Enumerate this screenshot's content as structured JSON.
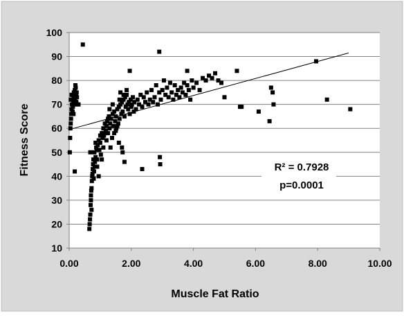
{
  "chart_data": {
    "type": "scatter",
    "xlabel": "Muscle Fat Ratio",
    "ylabel": "Fitness Score",
    "xlim": [
      0,
      10
    ],
    "ylim": [
      10,
      100
    ],
    "x_ticks": [
      "0.00",
      "2.00",
      "4.00",
      "6.00",
      "8.00",
      "10.00"
    ],
    "x_tick_values": [
      0,
      2,
      4,
      6,
      8,
      10
    ],
    "y_ticks": [
      "10",
      "20",
      "30",
      "40",
      "50",
      "60",
      "70",
      "80",
      "90",
      "100"
    ],
    "y_tick_values": [
      10,
      20,
      30,
      40,
      50,
      60,
      70,
      80,
      90,
      100
    ],
    "grid": "horizontal",
    "trendline": {
      "x": [
        0.0,
        9.0
      ],
      "y": [
        59.5,
        91.5
      ]
    },
    "annotations": [
      "R² = 0.7928",
      "p=0.0001"
    ],
    "points": [
      [
        0.02,
        50
      ],
      [
        0.03,
        56
      ],
      [
        0.04,
        60
      ],
      [
        0.05,
        62
      ],
      [
        0.06,
        64
      ],
      [
        0.07,
        66
      ],
      [
        0.08,
        68
      ],
      [
        0.09,
        70
      ],
      [
        0.1,
        72
      ],
      [
        0.12,
        69
      ],
      [
        0.13,
        71
      ],
      [
        0.14,
        73
      ],
      [
        0.15,
        75
      ],
      [
        0.16,
        70
      ],
      [
        0.17,
        74
      ],
      [
        0.18,
        76
      ],
      [
        0.19,
        72
      ],
      [
        0.2,
        78
      ],
      [
        0.21,
        77
      ],
      [
        0.22,
        74
      ],
      [
        0.23,
        71
      ],
      [
        0.24,
        75
      ],
      [
        0.25,
        73
      ],
      [
        0.26,
        70
      ],
      [
        0.05,
        72
      ],
      [
        0.08,
        74
      ],
      [
        0.11,
        67
      ],
      [
        0.14,
        66
      ],
      [
        0.18,
        42
      ],
      [
        0.3,
        70
      ],
      [
        0.44,
        95
      ],
      [
        0.65,
        18
      ],
      [
        0.66,
        20
      ],
      [
        0.67,
        22
      ],
      [
        0.68,
        24
      ],
      [
        0.69,
        28
      ],
      [
        0.7,
        30
      ],
      [
        0.71,
        34
      ],
      [
        0.72,
        35
      ],
      [
        0.73,
        38
      ],
      [
        0.74,
        40
      ],
      [
        0.75,
        41
      ],
      [
        0.76,
        43
      ],
      [
        0.77,
        45
      ],
      [
        0.78,
        47
      ],
      [
        0.79,
        39
      ],
      [
        0.8,
        42
      ],
      [
        0.81,
        50
      ],
      [
        0.82,
        44
      ],
      [
        0.83,
        46
      ],
      [
        0.85,
        48
      ],
      [
        0.87,
        52
      ],
      [
        0.89,
        51
      ],
      [
        0.9,
        47
      ],
      [
        0.92,
        53
      ],
      [
        0.95,
        55
      ],
      [
        0.97,
        51
      ],
      [
        1.0,
        54
      ],
      [
        1.02,
        49
      ],
      [
        1.05,
        58
      ],
      [
        1.08,
        56
      ],
      [
        1.1,
        60
      ],
      [
        1.12,
        57
      ],
      [
        1.15,
        62
      ],
      [
        1.18,
        59
      ],
      [
        1.2,
        61
      ],
      [
        1.22,
        63
      ],
      [
        1.25,
        58
      ],
      [
        1.28,
        65
      ],
      [
        1.3,
        60
      ],
      [
        1.32,
        62
      ],
      [
        1.35,
        64
      ],
      [
        1.38,
        56
      ],
      [
        1.4,
        66
      ],
      [
        1.42,
        61
      ],
      [
        1.45,
        67
      ],
      [
        1.48,
        63
      ],
      [
        1.5,
        65
      ],
      [
        1.52,
        60
      ],
      [
        1.55,
        68
      ],
      [
        1.58,
        62
      ],
      [
        1.6,
        69
      ],
      [
        1.62,
        64
      ],
      [
        1.65,
        70
      ],
      [
        1.68,
        66
      ],
      [
        1.7,
        71
      ],
      [
        1.72,
        67
      ],
      [
        1.75,
        72
      ],
      [
        1.78,
        65
      ],
      [
        1.8,
        73
      ],
      [
        1.82,
        69
      ],
      [
        1.85,
        74
      ],
      [
        1.88,
        70
      ],
      [
        1.9,
        68
      ],
      [
        1.92,
        71
      ],
      [
        1.95,
        66
      ],
      [
        1.98,
        72
      ],
      [
        2.0,
        69
      ],
      [
        2.02,
        70
      ],
      [
        2.05,
        73
      ],
      [
        2.08,
        67
      ],
      [
        0.85,
        54
      ],
      [
        1.0,
        57
      ],
      [
        1.2,
        55
      ],
      [
        1.33,
        52
      ],
      [
        1.45,
        58
      ],
      [
        1.6,
        54
      ],
      [
        1.7,
        52
      ],
      [
        1.72,
        50
      ],
      [
        1.78,
        46
      ],
      [
        1.5,
        59
      ],
      [
        1.55,
        61
      ],
      [
        1.65,
        75
      ],
      [
        1.75,
        74
      ],
      [
        1.85,
        76
      ],
      [
        1.95,
        84
      ],
      [
        1.62,
        72
      ],
      [
        1.4,
        70
      ],
      [
        1.3,
        68
      ],
      [
        1.25,
        64
      ],
      [
        1.15,
        58
      ],
      [
        0.95,
        40
      ],
      [
        0.9,
        44
      ],
      [
        0.7,
        32
      ],
      [
        0.72,
        26
      ],
      [
        0.68,
        50
      ],
      [
        1.05,
        47
      ],
      [
        1.1,
        52
      ],
      [
        2.1,
        71
      ],
      [
        2.15,
        68
      ],
      [
        2.2,
        72
      ],
      [
        2.25,
        70
      ],
      [
        2.3,
        74
      ],
      [
        2.35,
        69
      ],
      [
        2.4,
        73
      ],
      [
        2.45,
        71
      ],
      [
        2.5,
        75
      ],
      [
        2.55,
        70
      ],
      [
        2.6,
        72
      ],
      [
        2.65,
        76
      ],
      [
        2.7,
        71
      ],
      [
        2.75,
        73
      ],
      [
        2.8,
        78
      ],
      [
        2.85,
        70
      ],
      [
        2.9,
        75
      ],
      [
        2.95,
        72
      ],
      [
        3.0,
        76
      ],
      [
        3.05,
        80
      ],
      [
        3.1,
        74
      ],
      [
        3.15,
        77
      ],
      [
        3.2,
        73
      ],
      [
        3.25,
        79
      ],
      [
        3.3,
        75
      ],
      [
        3.35,
        72
      ],
      [
        3.4,
        78
      ],
      [
        3.45,
        74
      ],
      [
        3.5,
        76
      ],
      [
        3.55,
        73
      ],
      [
        3.6,
        77
      ],
      [
        3.65,
        75
      ],
      [
        3.7,
        79
      ],
      [
        3.75,
        74
      ],
      [
        3.8,
        78
      ],
      [
        3.85,
        76
      ],
      [
        3.9,
        72
      ],
      [
        3.95,
        80
      ],
      [
        4.0,
        77
      ],
      [
        4.1,
        79
      ],
      [
        4.2,
        76
      ],
      [
        4.3,
        81
      ],
      [
        4.4,
        80
      ],
      [
        4.5,
        82
      ],
      [
        4.6,
        81
      ],
      [
        4.7,
        83
      ],
      [
        4.8,
        80
      ],
      [
        4.9,
        79
      ],
      [
        2.35,
        43
      ],
      [
        2.92,
        48
      ],
      [
        2.93,
        45
      ],
      [
        2.9,
        92
      ],
      [
        3.8,
        84
      ],
      [
        5.0,
        73
      ],
      [
        5.4,
        84
      ],
      [
        5.5,
        69
      ],
      [
        5.55,
        69
      ],
      [
        6.1,
        67
      ],
      [
        6.45,
        63
      ],
      [
        6.5,
        77
      ],
      [
        6.55,
        75
      ],
      [
        6.58,
        70
      ],
      [
        7.95,
        88
      ],
      [
        8.3,
        72
      ],
      [
        9.05,
        68
      ]
    ]
  }
}
